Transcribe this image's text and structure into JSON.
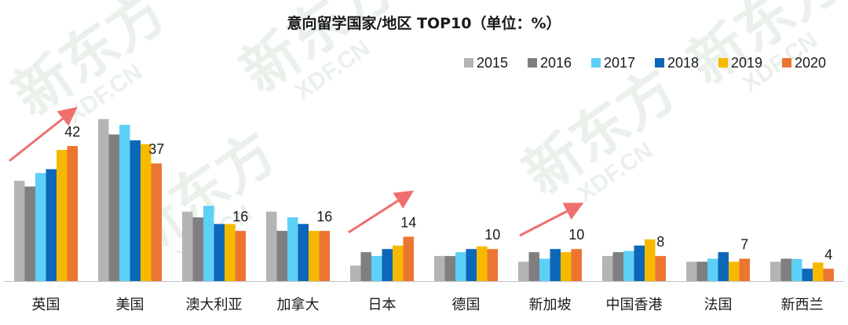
{
  "chart_data": {
    "type": "bar",
    "title": "意向留学国家/地区 TOP10（单位：%）",
    "categories": [
      "英国",
      "美国",
      "澳大利亚",
      "加拿大",
      "日本",
      "德国",
      "新加坡",
      "中国香港",
      "法国",
      "新西兰"
    ],
    "series": [
      {
        "name": "2015",
        "color": "#b4b4b4",
        "values": [
          26,
          42,
          18,
          18,
          4,
          6.5,
          5,
          6.5,
          5,
          5
        ]
      },
      {
        "name": "2016",
        "color": "#7f7f7f",
        "values": [
          24.5,
          38,
          16.5,
          13,
          7.5,
          6.5,
          7.5,
          7.5,
          5,
          5.8
        ]
      },
      {
        "name": "2017",
        "color": "#5dd0f5",
        "values": [
          28,
          40.5,
          19.5,
          16.5,
          6.5,
          7.5,
          5.8,
          7.8,
          5.8,
          5.7
        ]
      },
      {
        "name": "2018",
        "color": "#0d67b8",
        "values": [
          29,
          36.5,
          14.8,
          14.8,
          8.3,
          8.3,
          8.3,
          9.2,
          7.5,
          3.2
        ]
      },
      {
        "name": "2019",
        "color": "#f7b900",
        "values": [
          34,
          35.5,
          14.8,
          13,
          9.2,
          9,
          7.5,
          10.8,
          5,
          4.8
        ]
      },
      {
        "name": "2020",
        "color": "#ec7532",
        "values": [
          35,
          30.5,
          13,
          13,
          11.5,
          8.3,
          8.3,
          6.5,
          5.8,
          3.2
        ]
      }
    ],
    "data_labels": [
      "42",
      "37",
      "16",
      "16",
      "14",
      "10",
      "10",
      "8",
      "7",
      "4"
    ],
    "ylim": [
      0,
      46
    ],
    "legend_position": "top-right",
    "grid": false
  },
  "watermark": {
    "brand": "新东方",
    "sub": "XDF.CN",
    "color": "#d9e6dc"
  },
  "trend_arrow_color": "#ef6f6f"
}
